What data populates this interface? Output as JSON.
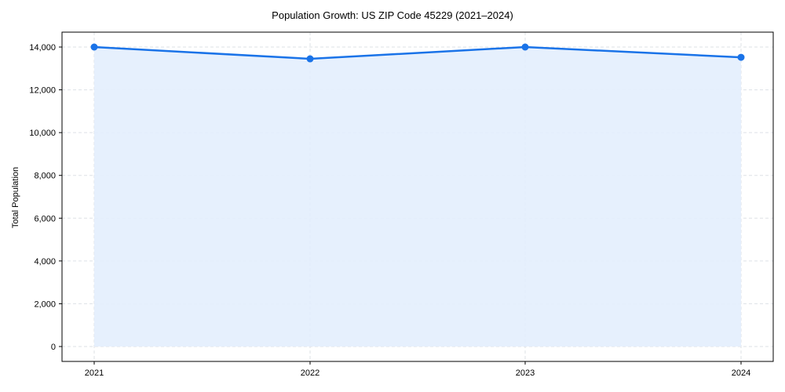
{
  "chart_data": {
    "type": "area",
    "title": "Population Growth: US ZIP Code 45229 (2021–2024)",
    "xlabel": "",
    "ylabel": "Total Population",
    "categories": [
      "2021",
      "2022",
      "2023",
      "2024"
    ],
    "series": [
      {
        "name": "Total Population",
        "values": [
          14000,
          13450,
          14000,
          13520
        ],
        "color": "#1a73e8",
        "fill": "#e3eefd"
      }
    ],
    "yticks": [
      0,
      2000,
      4000,
      6000,
      8000,
      10000,
      12000,
      14000
    ],
    "ytick_labels": [
      "0",
      "2,000",
      "4,000",
      "6,000",
      "8,000",
      "10,000",
      "12,000",
      "14,000"
    ],
    "ylim": [
      -700,
      14700
    ],
    "grid": true,
    "legend": false
  }
}
